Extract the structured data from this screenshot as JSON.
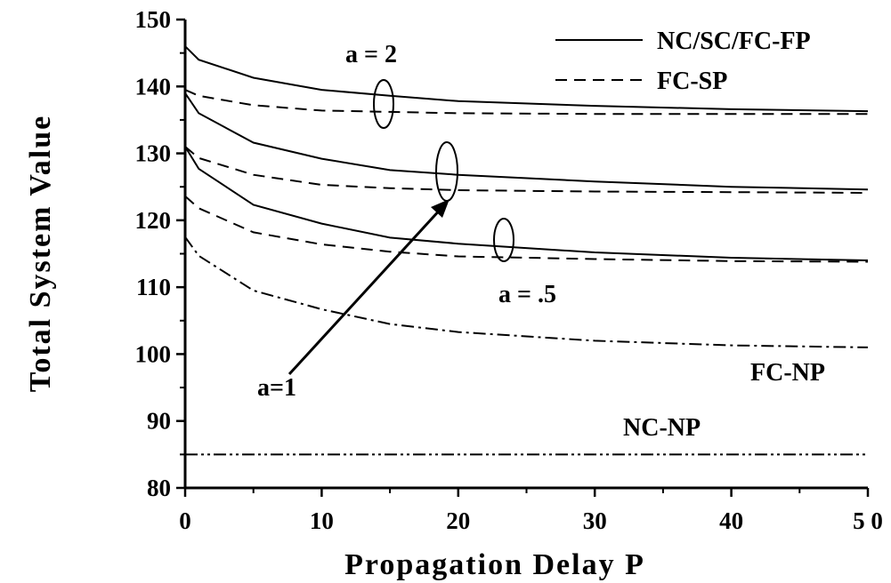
{
  "chart_data": {
    "type": "line",
    "title": "",
    "xlabel": "Propagation Delay P",
    "ylabel": "Total System Value",
    "xlim": [
      0,
      50
    ],
    "ylim": [
      80,
      150
    ],
    "x_ticks": [
      0,
      10,
      20,
      30,
      40,
      50
    ],
    "x_tick_labels": [
      "0",
      "10",
      "20",
      "30",
      "40",
      "5 0"
    ],
    "y_ticks": [
      80,
      90,
      100,
      110,
      120,
      130,
      140,
      150
    ],
    "y_tick_labels": [
      "80",
      "90",
      "100",
      "110",
      "120",
      "130",
      "140",
      "150"
    ],
    "grid": false,
    "legend": {
      "position": "top-right",
      "entries": [
        {
          "label": "NC/SC/FC-FP",
          "style": "solid"
        },
        {
          "label": "FC-SP",
          "style": "dashed"
        }
      ]
    },
    "series": [
      {
        "group": "NC/SC/FC-FP",
        "param": "a = 2",
        "style": "solid",
        "x": [
          0,
          1,
          5,
          10,
          15,
          20,
          30,
          40,
          50
        ],
        "y": [
          146,
          144,
          141.3,
          139.5,
          138.6,
          137.8,
          137.1,
          136.6,
          136.3
        ]
      },
      {
        "group": "FC-SP",
        "param": "a = 2",
        "style": "dashed",
        "x": [
          0,
          1,
          5,
          10,
          15,
          20,
          30,
          40,
          50
        ],
        "y": [
          139.5,
          138.6,
          137.2,
          136.4,
          136.2,
          136.0,
          135.9,
          135.9,
          135.9
        ]
      },
      {
        "group": "NC/SC/FC-FP",
        "param": "a=1",
        "style": "solid",
        "x": [
          0,
          1,
          5,
          10,
          15,
          20,
          30,
          40,
          50
        ],
        "y": [
          139,
          136,
          131.6,
          129.2,
          127.5,
          126.8,
          125.8,
          125.0,
          124.6
        ]
      },
      {
        "group": "FC-SP",
        "param": "a=1",
        "style": "dashed",
        "x": [
          0,
          1,
          5,
          10,
          15,
          20,
          30,
          40,
          50
        ],
        "y": [
          131,
          129.3,
          126.8,
          125.3,
          124.8,
          124.5,
          124.3,
          124.2,
          124.1
        ]
      },
      {
        "group": "NC/SC/FC-FP",
        "param": "a=.5",
        "style": "solid",
        "x": [
          0,
          1,
          5,
          10,
          15,
          20,
          30,
          40,
          50
        ],
        "y": [
          131,
          127.7,
          122.3,
          119.5,
          117.4,
          116.5,
          115.2,
          114.4,
          114.0
        ]
      },
      {
        "group": "FC-SP",
        "param": "a=.5",
        "style": "dashed",
        "x": [
          0,
          1,
          5,
          10,
          15,
          20,
          30,
          40,
          50
        ],
        "y": [
          123.6,
          121.8,
          118.2,
          116.4,
          115.3,
          114.6,
          114.2,
          113.9,
          113.8
        ]
      },
      {
        "group": "FC-NP",
        "style": "dash-dot",
        "x": [
          0,
          1,
          5,
          10,
          15,
          20,
          30,
          40,
          50
        ],
        "y": [
          117.5,
          114.7,
          109.5,
          106.7,
          104.5,
          103.3,
          102.0,
          101.3,
          101.0
        ]
      },
      {
        "group": "NC-NP",
        "style": "dash-dot-dot",
        "x": [
          0,
          50
        ],
        "y": [
          85,
          85
        ]
      }
    ],
    "annotations": {
      "a2": "a = 2",
      "a1": "a=1",
      "a05": "a = .5",
      "fcnp": "FC-NP",
      "ncnp": "NC-NP"
    }
  }
}
